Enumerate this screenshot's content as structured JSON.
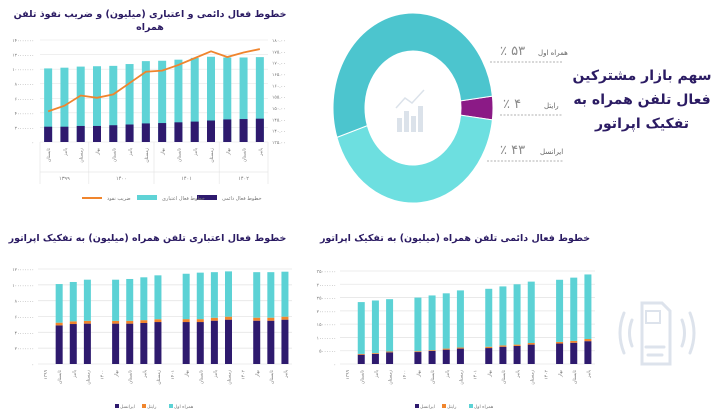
{
  "colors": {
    "title": "#2b1b63",
    "permanent": "#2e1a6e",
    "credit": "#5fd3d6",
    "penetration": "#f0852d",
    "hamrah": "#5cd2d5",
    "rightel": "#f0852d",
    "irancell": "#2e1a6e",
    "donut_hamrah": "#4cc5ce",
    "donut_irancell": "#6ddfe0",
    "donut_rightel": "#8b1a86"
  },
  "market_share": {
    "title": "سهم بازار مشترکین فعال تلفن همراه به تفکیک اپراتور",
    "title_lines": [
      "سهم بازار مشترکین",
      "فعال تلفن همراه به",
      "تفکیک اپراتور"
    ],
    "icons": [
      "trend-chart-icon",
      "sim-card-signal-icon"
    ],
    "slices": [
      {
        "name": "همراه اول",
        "value": 53,
        "label": "۵۳ ٪"
      },
      {
        "name": "رایتل",
        "value": 4,
        "label": "۴ ٪"
      },
      {
        "name": "ایرانسل",
        "value": 43,
        "label": "۴۳ ٪"
      }
    ]
  },
  "chart_data": [
    {
      "type": "bar+line",
      "title": "خطوط فعال دائمی و اعتباری (میلیون) و ضریب نفوذ تلفن همراه",
      "categories": [
        "تابستان",
        "پاییز",
        "زمستان",
        "بهار",
        "تابستان",
        "پاییز",
        "زمستان",
        "بهار",
        "تابستان",
        "پاییز",
        "زمستان",
        "بهار",
        "تابستان",
        "پاییز"
      ],
      "groups": [
        {
          "label": "۱۳۹۹",
          "count": 3
        },
        {
          "label": "۱۴۰۰",
          "count": 4
        },
        {
          "label": "۱۴۰۱",
          "count": 4
        },
        {
          "label": "۱۴۰۲",
          "count": 3
        }
      ],
      "ylim": [
        0,
        140000000
      ],
      "yticks": [
        "۰",
        "۲۰۰۰۰۰۰۰",
        "۴۰۰۰۰۰۰۰",
        "۶۰۰۰۰۰۰۰",
        "۸۰۰۰۰۰۰۰",
        "۱۰۰۰۰۰۰۰۰",
        "۱۲۰۰۰۰۰۰۰",
        "۱۴۰۰۰۰۰۰۰"
      ],
      "y2lim": [
        135,
        180
      ],
      "y2ticks": [
        "۱۳۵.۰۰",
        "۱۴۰.۰۰",
        "۱۴۵.۰۰",
        "۱۵۰.۰۰",
        "۱۵۵.۰۰",
        "۱۶۰.۰۰",
        "۱۶۵.۰۰",
        "۱۷۰.۰۰",
        "۱۷۵.۰۰",
        "۱۸۰.۰۰"
      ],
      "legend_position": "bottom",
      "grid": true,
      "series": [
        {
          "name": "خطوط فعال دائمی",
          "type": "bar",
          "values": [
            21000000,
            21000000,
            22000000,
            22000000,
            23000000,
            24000000,
            25500000,
            26000000,
            27000000,
            28000000,
            29500000,
            31000000,
            31500000,
            32000000
          ]
        },
        {
          "name": "خطوط فعال اعتباری",
          "type": "bar",
          "values": [
            101000000,
            102000000,
            103500000,
            104000000,
            104500000,
            107000000,
            111000000,
            111500000,
            113000000,
            115500000,
            117000000,
            116000000,
            116000000,
            116500000
          ]
        },
        {
          "name": "ضریب نفوذ",
          "type": "line",
          "axis": "right",
          "values": [
            148.5,
            151,
            155.5,
            154.5,
            156,
            161,
            166,
            166.5,
            169,
            172,
            175,
            172.5,
            174.5,
            176
          ]
        }
      ]
    },
    {
      "type": "stacked-bar",
      "title": "خطوط فعال اعتباری تلفن همراه (میلیون) به تفکیک اپراتور",
      "categories": [
        "۱۳۹۹",
        "تابستان",
        "پاییز",
        "زمستان",
        "۱۴۰۰",
        "بهار",
        "تابستان",
        "پاییز",
        "زمستان",
        "۱۴۰۱",
        "بهار",
        "تابستان",
        "پاییز",
        "زمستان",
        "۱۴۰۲",
        "بهار",
        "تابستان",
        "پاییز"
      ],
      "ylim": [
        0,
        120000000
      ],
      "yticks": [
        "۰",
        "۲۰۰۰۰۰۰۰",
        "۴۰۰۰۰۰۰۰",
        "۶۰۰۰۰۰۰۰",
        "۸۰۰۰۰۰۰۰",
        "۱۰۰۰۰۰۰۰۰",
        "۱۲۰۰۰۰۰۰۰"
      ],
      "legend_position": "bottom",
      "grid": true,
      "series": [
        {
          "name": "ایرانسل",
          "values": [
            null,
            48800000,
            50500000,
            51000000,
            null,
            51000000,
            51000000,
            51800000,
            53000000,
            null,
            53000000,
            53000000,
            54700000,
            56000000,
            null,
            54700000,
            54700000,
            56000000
          ]
        },
        {
          "name": "رایتل",
          "values": [
            null,
            3400000,
            3400000,
            3500000,
            null,
            3500000,
            3500000,
            3600000,
            3600000,
            null,
            3700000,
            3700000,
            3700000,
            3800000,
            null,
            3800000,
            3800000,
            3800000
          ]
        },
        {
          "name": "همراه اول",
          "values": [
            null,
            48800000,
            49700000,
            52000000,
            null,
            52000000,
            52900000,
            54100000,
            55400000,
            null,
            57300000,
            58700000,
            57600000,
            57200000,
            null,
            57500000,
            57500000,
            56800000
          ]
        }
      ]
    },
    {
      "type": "stacked-bar",
      "title": "خطوط فعال دائمی تلفن همراه (میلیون) به تفکیک اپراتور",
      "categories": [
        "۱۳۹۹",
        "تابستان",
        "پاییز",
        "زمستان",
        "۱۴۰۰",
        "بهار",
        "تابستان",
        "پاییز",
        "زمستان",
        "۱۴۰۱",
        "بهار",
        "تابستان",
        "پاییز",
        "زمستان",
        "۱۴۰۲",
        "بهار",
        "تابستان",
        "پاییز"
      ],
      "ylim": [
        0,
        35000000
      ],
      "yticks": [
        "۰",
        "۵۰۰۰۰۰۰",
        "۱۰۰۰۰۰۰۰",
        "۱۵۰۰۰۰۰۰",
        "۲۰۰۰۰۰۰۰",
        "۲۵۰۰۰۰۰۰",
        "۳۰۰۰۰۰۰۰",
        "۳۵۰۰۰۰۰۰"
      ],
      "legend_position": "bottom",
      "grid": true,
      "series": [
        {
          "name": "ایرانسل",
          "values": [
            null,
            3500000,
            3800000,
            4400000,
            null,
            4500000,
            4900000,
            5400000,
            5800000,
            null,
            6000000,
            6500000,
            6800000,
            7300000,
            null,
            7700000,
            8000000,
            8600000
          ]
        },
        {
          "name": "رایتل",
          "values": [
            null,
            300000,
            300000,
            300000,
            null,
            300000,
            300000,
            400000,
            400000,
            null,
            500000,
            500000,
            500000,
            600000,
            null,
            600000,
            700000,
            800000
          ]
        },
        {
          "name": "همراه اول",
          "values": [
            null,
            19500000,
            19800000,
            19700000,
            null,
            20200000,
            20600000,
            20800000,
            21500000,
            null,
            21800000,
            22200000,
            22700000,
            23100000,
            null,
            23400000,
            23800000,
            24300000
          ]
        }
      ]
    }
  ]
}
